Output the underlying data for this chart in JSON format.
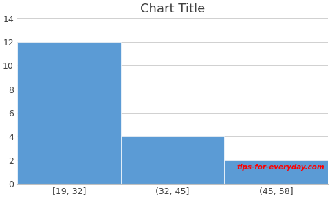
{
  "title": "Chart Title",
  "categories": [
    "[19, 32]",
    "(32, 45]",
    "(45, 58]"
  ],
  "values": [
    12,
    4,
    2
  ],
  "bar_color": "#5B9BD5",
  "ylim": [
    0,
    14
  ],
  "yticks": [
    0,
    2,
    4,
    6,
    8,
    10,
    12,
    14
  ],
  "background_color": "#ffffff",
  "title_fontsize": 13,
  "tick_fontsize": 9,
  "bar_width": 1.0,
  "watermark_text": "tips-for-everyday.com",
  "watermark_color": "#FF0000",
  "figsize": [
    4.81,
    2.89
  ],
  "dpi": 100
}
